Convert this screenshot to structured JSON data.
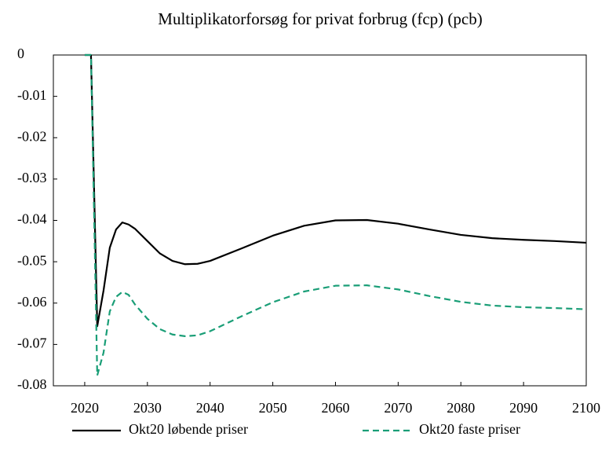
{
  "chart_data": {
    "type": "line",
    "title": "Multiplikatorforsøg for privat forbrug (fcp) (pcb)",
    "x": [
      2020,
      2021,
      2022,
      2023,
      2024,
      2025,
      2026,
      2027,
      2028,
      2030,
      2032,
      2034,
      2036,
      2038,
      2040,
      2045,
      2050,
      2055,
      2060,
      2065,
      2070,
      2075,
      2080,
      2085,
      2090,
      2095,
      2100
    ],
    "series": [
      {
        "name": "Okt20 løbende priser",
        "color": "#000000",
        "dash": false,
        "values": [
          0,
          0,
          -0.0656,
          -0.057,
          -0.0466,
          -0.0422,
          -0.0405,
          -0.041,
          -0.042,
          -0.045,
          -0.048,
          -0.0498,
          -0.0506,
          -0.0505,
          -0.0498,
          -0.0468,
          -0.0437,
          -0.0413,
          -0.04,
          -0.0399,
          -0.0408,
          -0.0422,
          -0.0435,
          -0.0443,
          -0.0447,
          -0.045,
          -0.0454
        ]
      },
      {
        "name": "Okt20 faste priser",
        "color": "#1a9e77",
        "dash": true,
        "values": [
          0,
          0,
          -0.0775,
          -0.072,
          -0.062,
          -0.0585,
          -0.0573,
          -0.058,
          -0.0603,
          -0.0638,
          -0.0663,
          -0.0676,
          -0.068,
          -0.0678,
          -0.0668,
          -0.0632,
          -0.0598,
          -0.0572,
          -0.0558,
          -0.0557,
          -0.0567,
          -0.0583,
          -0.0597,
          -0.0606,
          -0.061,
          -0.0612,
          -0.0615
        ]
      }
    ],
    "xlim": [
      2015,
      2100
    ],
    "xticks": [
      2020,
      2030,
      2040,
      2050,
      2060,
      2070,
      2080,
      2090,
      2100
    ],
    "ylim": [
      -0.08,
      0
    ],
    "yticks": [
      0,
      -0.01,
      -0.02,
      -0.03,
      -0.04,
      -0.05,
      -0.06,
      -0.07,
      -0.08
    ],
    "grid": false,
    "legend": "bottom"
  }
}
